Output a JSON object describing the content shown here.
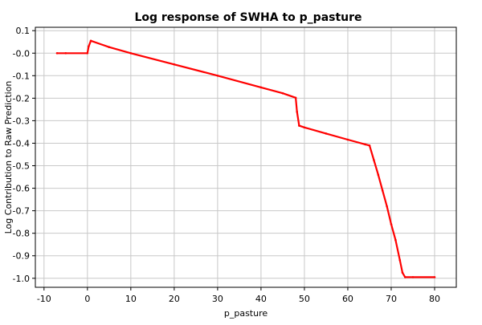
{
  "chart_data": {
    "type": "line",
    "title": "Log response of SWHA to p_pasture",
    "xlabel": "p_pasture",
    "ylabel": "Log Contribution to Raw Prediction",
    "xlim": [
      -12,
      85
    ],
    "ylim": [
      -1.04,
      0.115
    ],
    "xticks": [
      -10,
      0,
      10,
      20,
      30,
      40,
      50,
      60,
      70,
      80
    ],
    "yticks": [
      0.1,
      0.0,
      -0.1,
      -0.2,
      -0.3,
      -0.4,
      -0.5,
      -0.6,
      -0.7,
      -0.8,
      -0.9,
      -1.0
    ],
    "ytick_labels": [
      "0.1",
      "-0.0",
      "-0.1",
      "-0.2",
      "-0.3",
      "-0.4",
      "-0.5",
      "-0.6",
      "-0.7",
      "-0.8",
      "-0.9",
      "-1.0"
    ],
    "grid": true,
    "series": [
      {
        "color": "#ff0000",
        "x": [
          -7,
          -5,
          0,
          0.3,
          0.8,
          5,
          10,
          20,
          30,
          40,
          45,
          48,
          48.3,
          48.8,
          50,
          55,
          60,
          64,
          65,
          66,
          67,
          68,
          69,
          70,
          71,
          72,
          72.6,
          73.2,
          75,
          80
        ],
        "y": [
          0.0,
          0.0,
          0.0,
          0.03,
          0.055,
          0.027,
          0.0,
          -0.05,
          -0.1,
          -0.152,
          -0.178,
          -0.198,
          -0.26,
          -0.322,
          -0.33,
          -0.357,
          -0.384,
          -0.405,
          -0.41,
          -0.475,
          -0.54,
          -0.61,
          -0.68,
          -0.76,
          -0.83,
          -0.92,
          -0.975,
          -0.995,
          -0.995,
          -0.995
        ]
      }
    ]
  }
}
